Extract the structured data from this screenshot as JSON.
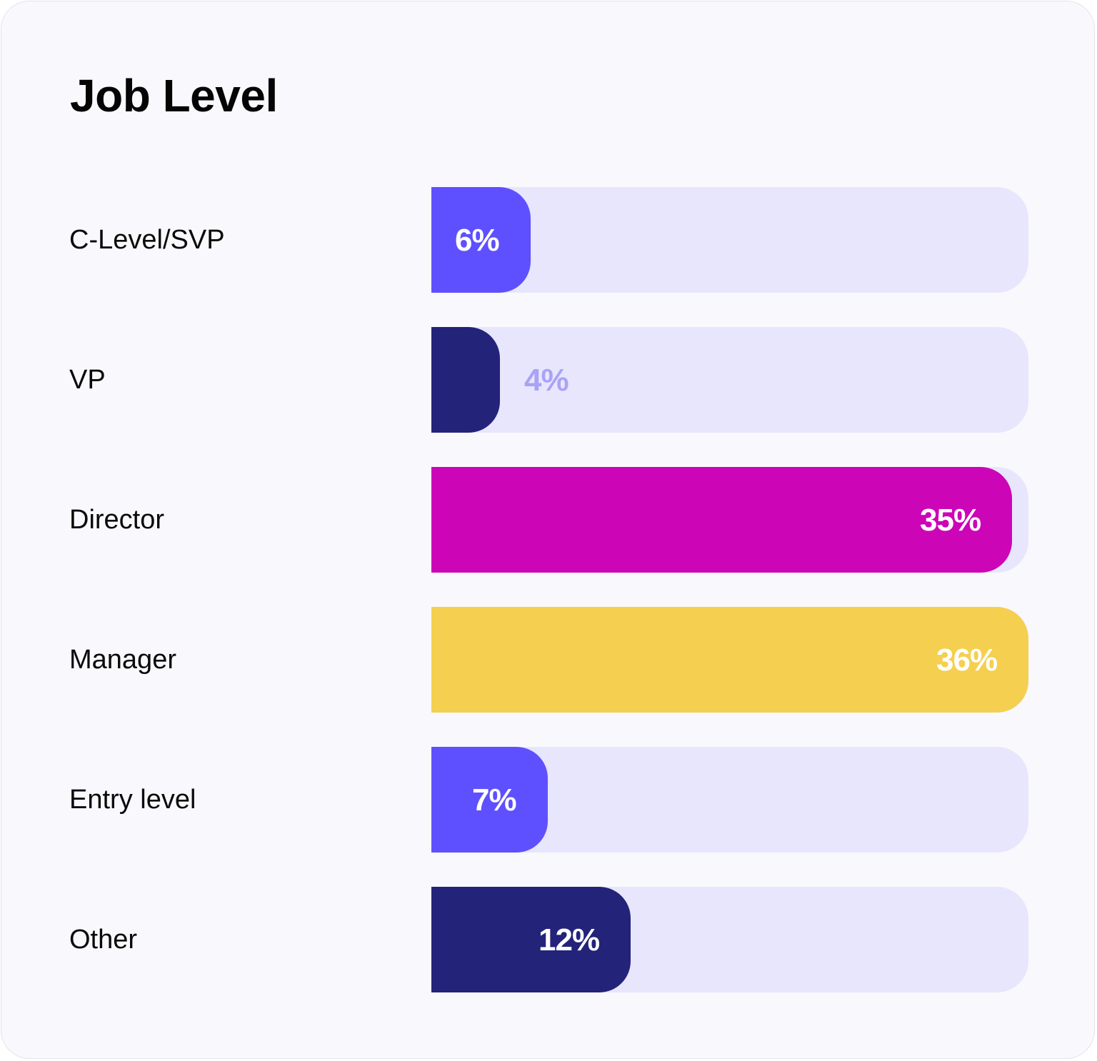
{
  "chart_data": {
    "type": "bar",
    "orientation": "horizontal",
    "title": "Job Level",
    "categories": [
      "C-Level/SVP",
      "VP",
      "Director",
      "Manager",
      "Entry level",
      "Other"
    ],
    "values": [
      6,
      4,
      35,
      36,
      7,
      12
    ],
    "value_labels": [
      "6%",
      "4%",
      "35%",
      "36%",
      "7%",
      "12%"
    ],
    "unit": "%",
    "xlim": [
      0,
      36
    ],
    "colors": [
      "#5e50ff",
      "#23237a",
      "#cc05b7",
      "#f5cf4f",
      "#5e50ff",
      "#23237a"
    ],
    "track_color": "#e7e6fd",
    "label_colors": [
      "#ffffff",
      "#a9a3f5",
      "#ffffff",
      "#ffffff",
      "#ffffff",
      "#ffffff"
    ],
    "grid": false,
    "legend": "none"
  }
}
